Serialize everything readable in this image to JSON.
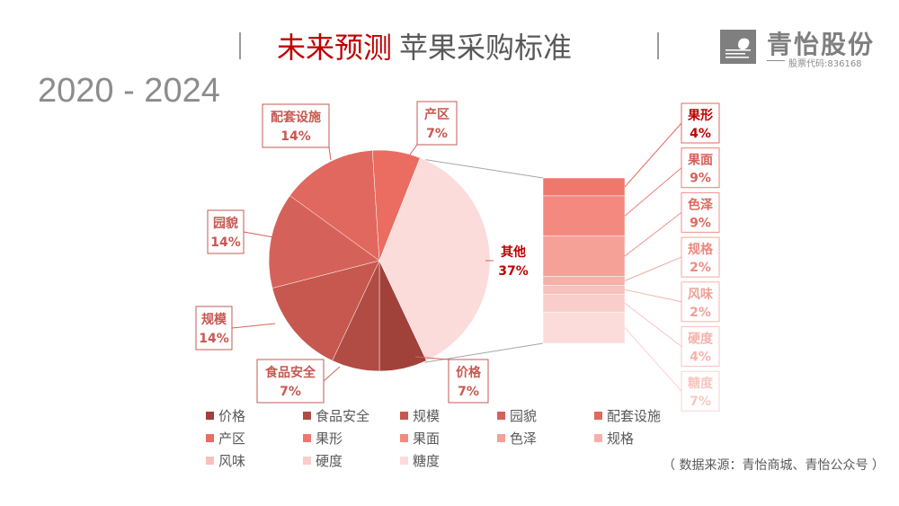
{
  "header": {
    "title_red": "未来预测",
    "title_gray": "苹果采购标准",
    "years": "2020 - 2024"
  },
  "logo": {
    "name": "青怡股份",
    "code": "股票代码:836168",
    "icon": "leaf-logo-icon"
  },
  "source": "（ 数据来源：青怡商城、青怡公众号 ）",
  "chart_data": {
    "type": "pie",
    "subtype": "pie-of-bar",
    "slices": [
      {
        "name": "价格",
        "value": 7,
        "label": "7%",
        "color": "#a0413a"
      },
      {
        "name": "食品安全",
        "value": 7,
        "label": "7%",
        "color": "#b04c43"
      },
      {
        "name": "规模",
        "value": 14,
        "label": "14%",
        "color": "#c65850"
      },
      {
        "name": "园貌",
        "value": 14,
        "label": "14%",
        "color": "#d5625a"
      },
      {
        "name": "配套设施",
        "value": 14,
        "label": "14%",
        "color": "#e0685e"
      },
      {
        "name": "产区",
        "value": 7,
        "label": "7%",
        "color": "#eb6c60"
      },
      {
        "name": "其他",
        "value": 37,
        "label": "37%",
        "color": "#fbdcda"
      }
    ],
    "other_breakdown": [
      {
        "name": "果形",
        "value": 4,
        "label": "4%",
        "color": "#f0776b"
      },
      {
        "name": "果面",
        "value": 9,
        "label": "9%",
        "color": "#f48a7f"
      },
      {
        "name": "色泽",
        "value": 9,
        "label": "9%",
        "color": "#f5a198"
      },
      {
        "name": "规格",
        "value": 2,
        "label": "2%",
        "color": "#f6b0a9"
      },
      {
        "name": "风味",
        "value": 2,
        "label": "2%",
        "color": "#f8c0bb"
      },
      {
        "name": "硬度",
        "value": 4,
        "label": "4%",
        "color": "#f9cdc9"
      },
      {
        "name": "糖度",
        "value": 7,
        "label": "7%",
        "color": "#fbdcda"
      }
    ],
    "legend": [
      "价格",
      "食品安全",
      "规模",
      "园貌",
      "配套设施",
      "产区",
      "果形",
      "果面",
      "色泽",
      "规格",
      "风味",
      "硬度",
      "糖度"
    ],
    "legend_position": "bottom"
  }
}
